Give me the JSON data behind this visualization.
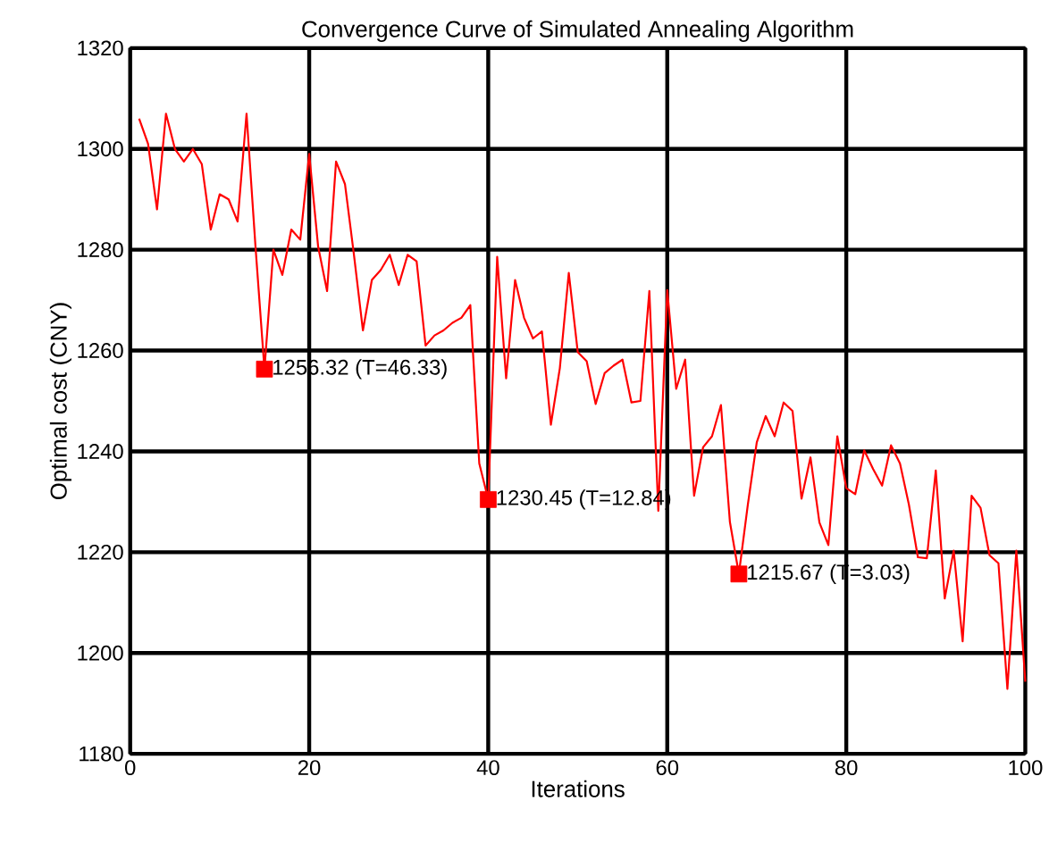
{
  "chart_data": {
    "type": "line",
    "title": "Convergence Curve of Simulated Annealing Algorithm",
    "xlabel": "Iterations",
    "ylabel": "Optimal cost (CNY)",
    "xlim": [
      0,
      100
    ],
    "ylim": [
      1180,
      1320
    ],
    "xticks": [
      0,
      20,
      40,
      60,
      80,
      100
    ],
    "yticks": [
      1180,
      1200,
      1220,
      1240,
      1260,
      1280,
      1300,
      1320
    ],
    "grid": true,
    "line_style": "solid",
    "series": [
      {
        "type": "line",
        "color": "#ff0000",
        "marker": "none",
        "x": [
          1,
          2,
          3,
          4,
          5,
          6,
          7,
          8,
          9,
          10,
          11,
          12,
          13,
          14,
          15,
          16,
          17,
          18,
          19,
          20,
          21,
          22,
          23,
          24,
          25,
          26,
          27,
          28,
          29,
          30,
          31,
          32,
          33,
          34,
          35,
          36,
          37,
          38,
          39,
          40,
          41,
          42,
          43,
          44,
          45,
          46,
          47,
          48,
          49,
          50,
          51,
          52,
          53,
          54,
          55,
          56,
          57,
          58,
          59,
          60,
          61,
          62,
          63,
          64,
          65,
          66,
          67,
          68,
          69,
          70,
          71,
          72,
          73,
          74,
          75,
          76,
          77,
          78,
          79,
          80,
          81,
          82,
          83,
          84,
          85,
          86,
          87,
          88,
          89,
          90,
          91,
          92,
          93,
          94,
          95,
          96,
          97,
          98,
          99,
          100
        ],
        "values": [
          1306,
          1301,
          1288,
          1307,
          1300,
          1297.5,
          1300,
          1297,
          1284,
          1291,
          1290,
          1285.6,
          1307,
          1280.6,
          1256.32,
          1280,
          1275,
          1284,
          1282,
          1299,
          1280.6,
          1271.8,
          1297.5,
          1293,
          1279,
          1264,
          1274,
          1276,
          1279,
          1273,
          1279,
          1277.7,
          1261,
          1263,
          1264,
          1265.5,
          1266.5,
          1269,
          1237.6,
          1230.45,
          1278.6,
          1254.5,
          1274,
          1266.5,
          1262.4,
          1263.8,
          1245.3,
          1256.5,
          1275.4,
          1259.7,
          1257.9,
          1249.4,
          1255.5,
          1257,
          1258.2,
          1249.7,
          1250,
          1271.8,
          1228.2,
          1272,
          1252.4,
          1258.2,
          1231.2,
          1240.8,
          1243,
          1249.2,
          1226,
          1215.67,
          1229.4,
          1241.8,
          1247,
          1243,
          1249.7,
          1248,
          1230.6,
          1238.8,
          1225.9,
          1221.4,
          1243,
          1232.7,
          1231.5,
          1240.2,
          1236.5,
          1233.2,
          1241.2,
          1237.6,
          1229.4,
          1219,
          1218.8,
          1236.2,
          1210.8,
          1220.3,
          1202.3,
          1231.2,
          1228.8,
          1219.4,
          1217.8,
          1192.9,
          1220.3,
          1194.3
        ]
      },
      {
        "type": "scatter",
        "color": "#ff0000",
        "marker": "square",
        "x": [
          15,
          40,
          68
        ],
        "values": [
          1256.32,
          1230.45,
          1215.67
        ]
      }
    ],
    "annotations": [
      {
        "text": "1256.32 (T=46.33)",
        "x": 15,
        "y": 1256.32
      },
      {
        "text": "1230.45 (T=12.84)",
        "x": 40,
        "y": 1230.45
      },
      {
        "text": "1215.67 (T=3.03)",
        "x": 68,
        "y": 1215.67
      }
    ]
  }
}
